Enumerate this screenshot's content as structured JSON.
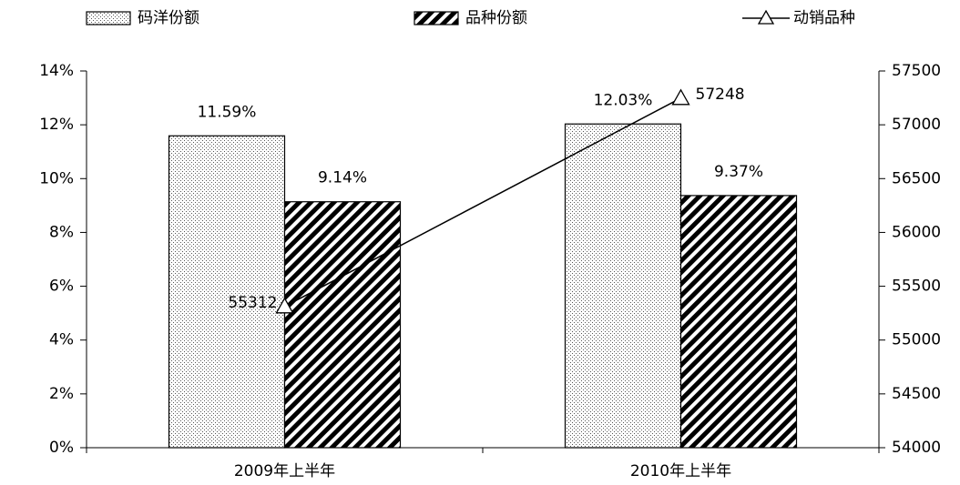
{
  "chart_data": {
    "type": "bar",
    "categories": [
      "2009年上半年",
      "2010年上半年"
    ],
    "series": [
      {
        "name": "码洋份额",
        "type": "bar",
        "color": "#000000",
        "values": [
          11.59,
          12.03
        ],
        "value_labels": [
          "11.59%",
          "12.03%"
        ]
      },
      {
        "name": "品种份额",
        "type": "bar",
        "color": "#000000",
        "values": [
          9.14,
          9.37
        ],
        "value_labels": [
          "9.14%",
          "9.37%"
        ]
      },
      {
        "name": "动销品种",
        "type": "line",
        "axis": "y2",
        "color": "#000000",
        "values": [
          55312,
          57248
        ]
      }
    ],
    "ylim": [
      0,
      14
    ],
    "yticks": [
      {
        "value": 0,
        "label": "0%"
      },
      {
        "value": 2,
        "label": "2%"
      },
      {
        "value": 4,
        "label": "4%"
      },
      {
        "value": 6,
        "label": "6%"
      },
      {
        "value": 8,
        "label": "8%"
      },
      {
        "value": 10,
        "label": "10%"
      },
      {
        "value": 12,
        "label": "12%"
      },
      {
        "value": 14,
        "label": "14%"
      }
    ],
    "y2lim": [
      54000,
      57500
    ],
    "y2ticks": [
      54000,
      54500,
      55000,
      55500,
      56000,
      56500,
      57000,
      57500
    ],
    "legend": "top",
    "grid": false
  }
}
